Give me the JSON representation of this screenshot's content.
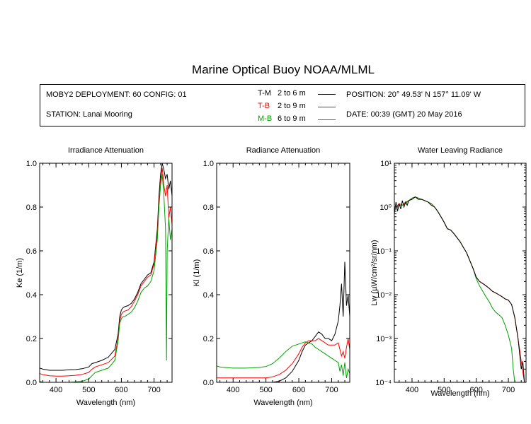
{
  "title": "Marine Optical Buoy NOAA/MLML",
  "info": {
    "deployment": "MOBY2 DEPLOYMENT: 60 CONFIG: 01",
    "station": "STATION: Lanai Mooring",
    "position": "POSITION: 20° 49.53' N   157° 11.09' W",
    "date": "DATE: 00:39 (GMT) 20 May 2016",
    "legend": [
      {
        "code": "T-M",
        "range": "2 to 6  m",
        "color": "#000000"
      },
      {
        "code": "T-B",
        "range": "2 to 9  m",
        "color": "#ff0000"
      },
      {
        "code": "M-B",
        "range": "6 to 9  m",
        "color": "#00a000"
      }
    ]
  },
  "chart_data": [
    {
      "type": "line",
      "title": "Irradiance Attenuation",
      "xlabel": "Wavelength (nm)",
      "ylabel": "Ke  (1/m)",
      "xlim": [
        350,
        755
      ],
      "ylim": [
        0,
        1.0
      ],
      "xticks": [
        400,
        500,
        600,
        700
      ],
      "yticks": [
        0.0,
        0.2,
        0.4,
        0.6,
        0.8,
        1.0
      ],
      "ytick_labels": [
        "0.0",
        "0.2",
        "0.4",
        "0.6",
        "0.8",
        "1.0"
      ],
      "series": [
        {
          "color": "#000000",
          "x": [
            350,
            360,
            380,
            400,
            420,
            440,
            460,
            480,
            500,
            510,
            520,
            540,
            560,
            580,
            590,
            595,
            600,
            605,
            610,
            620,
            630,
            640,
            650,
            660,
            670,
            680,
            690,
            700,
            710,
            715,
            720,
            725,
            730,
            735,
            740,
            745,
            750,
            755
          ],
          "y": [
            0.065,
            0.06,
            0.055,
            0.055,
            0.055,
            0.057,
            0.058,
            0.062,
            0.07,
            0.085,
            0.09,
            0.1,
            0.115,
            0.15,
            0.22,
            0.3,
            0.33,
            0.34,
            0.345,
            0.35,
            0.36,
            0.38,
            0.41,
            0.45,
            0.47,
            0.49,
            0.5,
            0.55,
            0.7,
            0.85,
            0.95,
            1.0,
            0.97,
            0.93,
            0.95,
            0.88,
            0.92,
            0.85
          ]
        },
        {
          "color": "#ff0000",
          "x": [
            350,
            360,
            380,
            400,
            420,
            440,
            460,
            480,
            500,
            510,
            520,
            540,
            560,
            580,
            590,
            595,
            600,
            605,
            610,
            620,
            630,
            640,
            650,
            660,
            670,
            680,
            690,
            700,
            710,
            715,
            720,
            725,
            730,
            735,
            740,
            745,
            750,
            755
          ],
          "y": [
            0.04,
            0.035,
            0.03,
            0.028,
            0.028,
            0.03,
            0.032,
            0.036,
            0.045,
            0.06,
            0.07,
            0.08,
            0.09,
            0.12,
            0.2,
            0.28,
            0.31,
            0.32,
            0.325,
            0.33,
            0.345,
            0.37,
            0.4,
            0.44,
            0.46,
            0.48,
            0.49,
            0.54,
            0.68,
            0.82,
            0.92,
            0.98,
            0.9,
            0.85,
            0.9,
            0.75,
            0.8,
            0.72
          ]
        },
        {
          "color": "#00a000",
          "x": [
            350,
            360,
            380,
            400,
            420,
            440,
            460,
            480,
            500,
            510,
            520,
            540,
            560,
            580,
            590,
            595,
            600,
            605,
            610,
            620,
            630,
            640,
            650,
            660,
            670,
            680,
            690,
            700,
            710,
            715,
            720,
            725,
            730,
            735,
            738,
            740,
            745,
            750,
            755
          ],
          "y": [
            0.005,
            0.0,
            0.0,
            0.0,
            0.0,
            0.0,
            0.002,
            0.005,
            0.015,
            0.03,
            0.045,
            0.055,
            0.065,
            0.1,
            0.19,
            0.27,
            0.29,
            0.3,
            0.3,
            0.31,
            0.32,
            0.34,
            0.37,
            0.41,
            0.43,
            0.44,
            0.46,
            0.51,
            0.65,
            0.8,
            0.9,
            0.95,
            0.85,
            0.7,
            0.1,
            0.6,
            0.75,
            0.65,
            0.7
          ]
        }
      ]
    },
    {
      "type": "line",
      "title": "Radiance Attenuation",
      "xlabel": "Wavelength (nm)",
      "ylabel": "Kl  (1/m)",
      "xlim": [
        350,
        755
      ],
      "ylim": [
        0,
        1.0
      ],
      "xticks": [
        400,
        500,
        600,
        700
      ],
      "yticks": [
        0.0,
        0.2,
        0.4,
        0.6,
        0.8,
        1.0
      ],
      "ytick_labels": [
        "0.0",
        "0.2",
        "0.4",
        "0.6",
        "0.8",
        "1.0"
      ],
      "series": [
        {
          "color": "#000000",
          "x": [
            350,
            360,
            380,
            400,
            420,
            440,
            460,
            480,
            500,
            520,
            540,
            560,
            580,
            600,
            610,
            620,
            630,
            640,
            650,
            660,
            670,
            680,
            690,
            700,
            710,
            720,
            725,
            730,
            735,
            740,
            745,
            750,
            755
          ],
          "y": [
            0.0,
            0.0,
            0.0,
            0.0,
            0.0,
            0.0,
            0.0,
            0.0,
            0.0,
            0.0,
            0.005,
            0.02,
            0.05,
            0.1,
            0.14,
            0.17,
            0.18,
            0.19,
            0.21,
            0.23,
            0.22,
            0.2,
            0.2,
            0.19,
            0.22,
            0.28,
            0.35,
            0.45,
            0.3,
            0.55,
            0.35,
            0.4,
            0.3
          ]
        },
        {
          "color": "#ff0000",
          "x": [
            350,
            360,
            380,
            400,
            420,
            440,
            460,
            480,
            500,
            520,
            540,
            560,
            580,
            600,
            610,
            620,
            630,
            640,
            650,
            660,
            670,
            680,
            690,
            700,
            710,
            720,
            725,
            730,
            735,
            740,
            745,
            750,
            755
          ],
          "y": [
            0.02,
            0.02,
            0.02,
            0.02,
            0.02,
            0.02,
            0.02,
            0.02,
            0.02,
            0.025,
            0.035,
            0.055,
            0.085,
            0.13,
            0.16,
            0.18,
            0.19,
            0.19,
            0.19,
            0.2,
            0.19,
            0.18,
            0.17,
            0.17,
            0.17,
            0.18,
            0.15,
            0.12,
            0.14,
            0.11,
            0.16,
            0.2,
            0.15
          ]
        },
        {
          "color": "#00a000",
          "x": [
            350,
            360,
            380,
            400,
            420,
            440,
            460,
            480,
            500,
            520,
            540,
            560,
            580,
            600,
            610,
            620,
            630,
            640,
            650,
            660,
            670,
            680,
            690,
            700,
            710,
            720,
            725,
            730,
            735,
            740,
            745,
            750,
            755
          ],
          "y": [
            0.075,
            0.07,
            0.067,
            0.065,
            0.065,
            0.065,
            0.066,
            0.068,
            0.072,
            0.085,
            0.11,
            0.14,
            0.165,
            0.175,
            0.18,
            0.185,
            0.18,
            0.175,
            0.16,
            0.15,
            0.14,
            0.13,
            0.12,
            0.11,
            0.1,
            0.09,
            0.05,
            0.08,
            0.03,
            0.09,
            0.02,
            0.06,
            0.04
          ]
        }
      ]
    },
    {
      "type": "line",
      "title": "Water Leaving Radiance",
      "xlabel": "Wavelength (nm)",
      "ylabel": "Lw  (µW/cm²/sr/nm)",
      "yscale": "log",
      "xlim": [
        345,
        755
      ],
      "ylim": [
        0.0001,
        10
      ],
      "xticks": [
        400,
        500,
        600,
        700
      ],
      "yticks": [
        0.0001,
        0.001,
        0.01,
        0.1,
        1,
        10
      ],
      "ytick_labels": [
        "10⁻⁴",
        "10⁻³",
        "10⁻²",
        "10⁻¹",
        "10⁰",
        "10¹"
      ],
      "series": [
        {
          "color": "#ff0000",
          "x": [
            350,
            360,
            370,
            380,
            390,
            400,
            410,
            420,
            430,
            440,
            450,
            460,
            470,
            480,
            490,
            500,
            510,
            520,
            530,
            540,
            550,
            560,
            570,
            580,
            590,
            600,
            610,
            620,
            630,
            640,
            650,
            660,
            670,
            680,
            690,
            700,
            710,
            720,
            730,
            740,
            750
          ],
          "y": [
            1.0,
            1.2,
            1.1,
            1.3,
            1.4,
            1.6,
            1.7,
            1.6,
            1.5,
            1.4,
            1.3,
            1.2,
            1.0,
            0.8,
            0.6,
            0.45,
            0.32,
            0.3,
            0.25,
            0.2,
            0.16,
            0.12,
            0.09,
            0.06,
            0.04,
            0.025,
            0.02,
            0.018,
            0.016,
            0.014,
            0.012,
            0.011,
            0.01,
            0.009,
            0.008,
            0.0075,
            0.006,
            0.003,
            0.001,
            0.0003,
            0.0001
          ]
        },
        {
          "color": "#00a000",
          "x": [
            350,
            360,
            370,
            380,
            390,
            400,
            410,
            420,
            430,
            440,
            450,
            460,
            470,
            480,
            490,
            500,
            510,
            520,
            530,
            540,
            550,
            560,
            570,
            580,
            590,
            600,
            610,
            620,
            630,
            640,
            650,
            660,
            670,
            680,
            690,
            700,
            710,
            715,
            720,
            730
          ],
          "y": [
            1.0,
            1.1,
            1.1,
            1.2,
            1.4,
            1.6,
            1.7,
            1.6,
            1.5,
            1.4,
            1.3,
            1.2,
            1.0,
            0.8,
            0.6,
            0.45,
            0.32,
            0.3,
            0.25,
            0.2,
            0.16,
            0.12,
            0.09,
            0.06,
            0.04,
            0.023,
            0.016,
            0.012,
            0.009,
            0.007,
            0.005,
            0.004,
            0.0035,
            0.003,
            0.002,
            0.0012,
            0.0006,
            0.0002,
            0.0001,
            0.0001
          ]
        },
        {
          "color": "#000000",
          "x": [
            345,
            350,
            355,
            360,
            365,
            370,
            375,
            380,
            385,
            390,
            400,
            410,
            420,
            430,
            440,
            450,
            460,
            470,
            480,
            490,
            500,
            510,
            520,
            530,
            540,
            550,
            560,
            570,
            580,
            590,
            600,
            610,
            620,
            630,
            640,
            650,
            660,
            670,
            680,
            690,
            700,
            710,
            720,
            730,
            740,
            745,
            750
          ],
          "y": [
            0.7,
            1.3,
            0.8,
            1.2,
            0.9,
            1.4,
            1.0,
            1.3,
            1.1,
            1.4,
            1.5,
            1.7,
            1.5,
            1.5,
            1.4,
            1.3,
            1.1,
            1.0,
            0.8,
            0.6,
            0.45,
            0.32,
            0.3,
            0.25,
            0.2,
            0.16,
            0.12,
            0.09,
            0.06,
            0.04,
            0.025,
            0.02,
            0.018,
            0.016,
            0.014,
            0.012,
            0.011,
            0.01,
            0.009,
            0.008,
            0.0075,
            0.006,
            0.003,
            0.001,
            0.0002,
            0.0003,
            0.0001
          ]
        }
      ]
    }
  ]
}
